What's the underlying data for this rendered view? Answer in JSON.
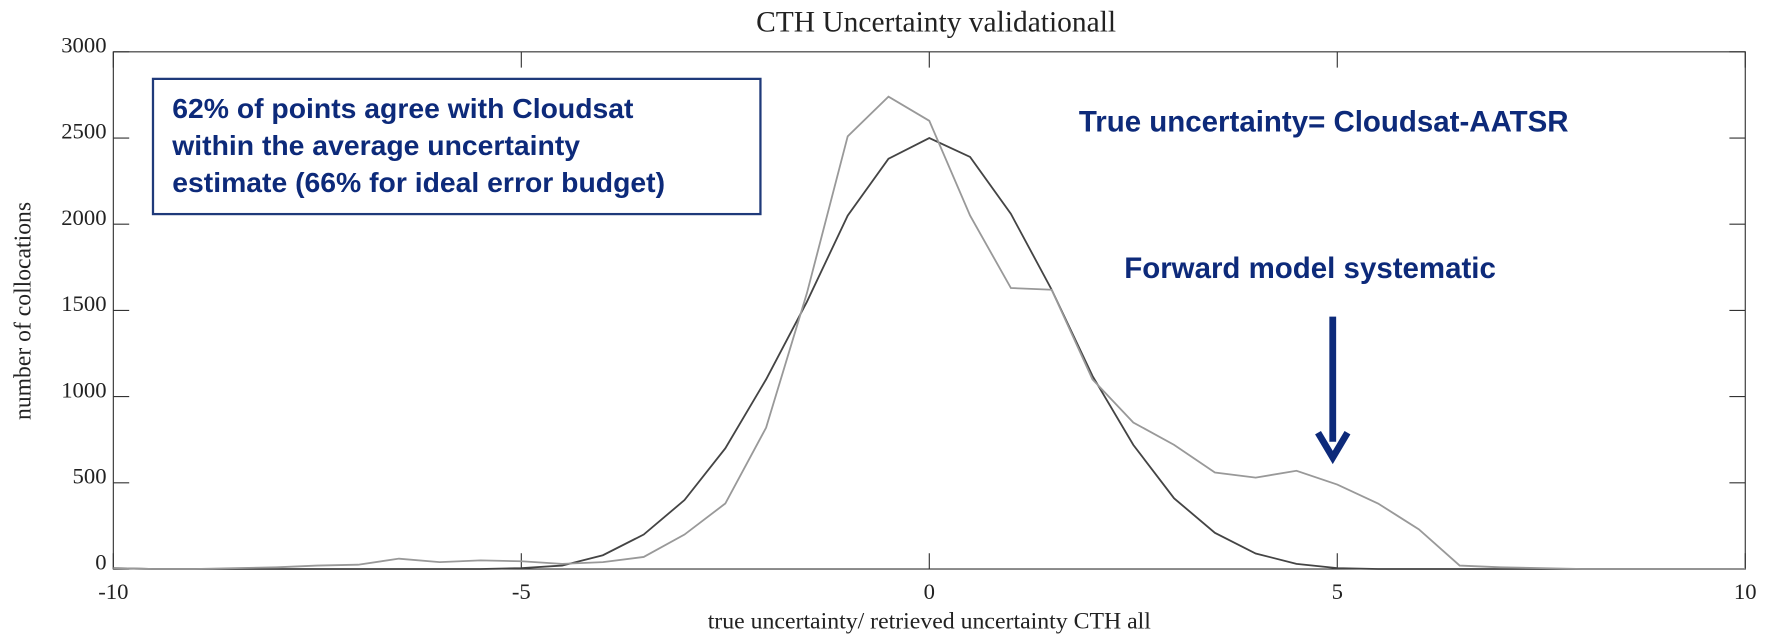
{
  "chart_data": {
    "type": "line",
    "title": "CTH Uncertainty validationall",
    "x_label": "true uncertainty/ retrieved uncertainty CTH all",
    "y_label": "number of collocations",
    "x": [
      -10,
      -9.5,
      -9,
      -8.5,
      -8,
      -7.5,
      -7,
      -6.5,
      -6,
      -5.5,
      -5,
      -4.5,
      -4,
      -3.5,
      -3,
      -2.5,
      -2,
      -1.5,
      -1,
      -0.5,
      0,
      0.5,
      1,
      1.5,
      2,
      2.5,
      3,
      3.5,
      4,
      4.5,
      5,
      5.5,
      6,
      6.5,
      7,
      7.5,
      8,
      8.5,
      9,
      9.5,
      10
    ],
    "series": [
      {
        "color": "#444444",
        "values": [
          5,
          0,
          0,
          0,
          0,
          0,
          0,
          0,
          0,
          0,
          5,
          20,
          80,
          200,
          400,
          700,
          1100,
          1550,
          2050,
          2380,
          2500,
          2390,
          2060,
          1620,
          1120,
          720,
          410,
          210,
          90,
          30,
          5,
          0,
          0,
          0,
          0,
          0,
          0,
          0,
          0,
          0,
          0
        ]
      },
      {
        "color": "#999999",
        "values": [
          5,
          0,
          0,
          5,
          10,
          20,
          25,
          60,
          40,
          50,
          45,
          30,
          40,
          70,
          200,
          380,
          820,
          1600,
          2510,
          2740,
          2600,
          2050,
          1630,
          1620,
          1100,
          850,
          720,
          560,
          530,
          570,
          490,
          380,
          230,
          20,
          10,
          5,
          0,
          0,
          0,
          0,
          0
        ]
      }
    ],
    "xlim": [
      -10,
      10
    ],
    "ylim": [
      0,
      3000
    ],
    "xticks": [
      -10,
      -5,
      0,
      5,
      10
    ],
    "yticks": [
      0,
      500,
      1000,
      1500,
      2000,
      2500,
      3000
    ],
    "annotations": {
      "box": [
        "62% of points agree with Cloudsat",
        "within the average uncertainty",
        "estimate (66% for ideal error budget)"
      ],
      "right": "True uncertainty= Cloudsat-AATSR",
      "arrow": "Forward model systematic"
    }
  }
}
